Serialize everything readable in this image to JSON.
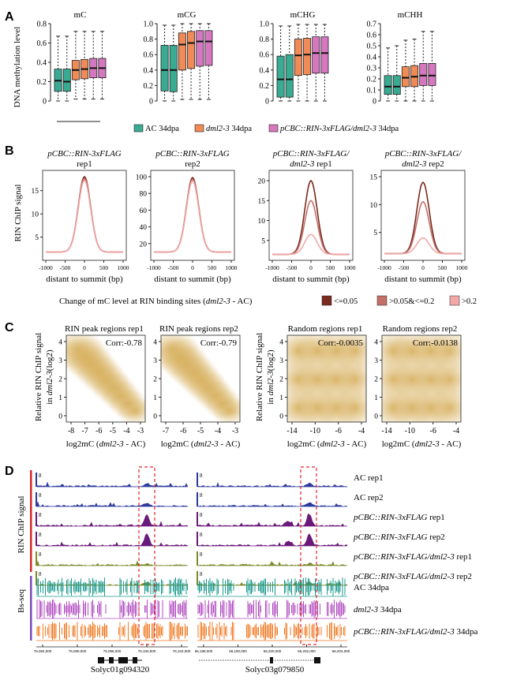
{
  "colors": {
    "ac": "#3aab93",
    "dml": "#f08a57",
    "pcbc": "#d678c0",
    "peak_dark": "#7a2a1e",
    "peak_mid": "#c27068",
    "peak_light": "#f2a8a8",
    "density": "#d7b05e",
    "track_ac": "#2c3a9e",
    "track_pcbc": "#6a1a7a",
    "track_dml": "#7d8a2a",
    "bs_ac": "#1a9a8e",
    "bs_dml": "#b04cc0",
    "bs_pcbc": "#f07a22",
    "bar_red": "#d8262a",
    "bar_purple": "#7a4ab8",
    "highlight": "#e0262a"
  },
  "panels": {
    "A": "A",
    "B": "B",
    "C": "C",
    "D": "D"
  },
  "panelA": {
    "ylabel": "DNA methylation level",
    "legend": [
      {
        "label": "AC 34dpa",
        "color": "#3aab93"
      },
      {
        "label": "dml2-3 34dpa",
        "color": "#f08a57"
      },
      {
        "label": "pCBC::RIN-3xFLAG/dml2-3 34dpa",
        "color": "#d678c0"
      }
    ],
    "charts": [
      {
        "title": "mC",
        "ylim": [
          0,
          0.8
        ],
        "ticks": [
          "0",
          "0.2",
          "0.4",
          "0.6",
          "0.8"
        ],
        "boxes": [
          {
            "group": "AC",
            "q1": 0.1,
            "median": 0.21,
            "q3": 0.33,
            "min": 0.0,
            "max": 0.67
          },
          {
            "group": "AC",
            "q1": 0.1,
            "median": 0.2,
            "q3": 0.33,
            "min": 0.0,
            "max": 0.67
          },
          {
            "group": "dml",
            "q1": 0.22,
            "median": 0.32,
            "q3": 0.42,
            "min": 0.02,
            "max": 0.72
          },
          {
            "group": "dml",
            "q1": 0.23,
            "median": 0.33,
            "q3": 0.43,
            "min": 0.02,
            "max": 0.72
          },
          {
            "group": "pcbc",
            "q1": 0.24,
            "median": 0.34,
            "q3": 0.44,
            "min": 0.02,
            "max": 0.72
          },
          {
            "group": "pcbc",
            "q1": 0.24,
            "median": 0.34,
            "q3": 0.44,
            "min": 0.02,
            "max": 0.72
          }
        ]
      },
      {
        "title": "mCG",
        "ylim": [
          0,
          1.0
        ],
        "ticks": [
          "0",
          "0.2",
          "0.4",
          "0.6",
          "0.8",
          "1.0"
        ],
        "boxes": [
          {
            "group": "AC",
            "q1": 0.13,
            "median": 0.4,
            "q3": 0.72,
            "min": 0.0,
            "max": 0.98
          },
          {
            "group": "AC",
            "q1": 0.12,
            "median": 0.4,
            "q3": 0.72,
            "min": 0.0,
            "max": 0.98
          },
          {
            "group": "dml",
            "q1": 0.4,
            "median": 0.73,
            "q3": 0.88,
            "min": 0.02,
            "max": 1.0
          },
          {
            "group": "dml",
            "q1": 0.42,
            "median": 0.75,
            "q3": 0.9,
            "min": 0.02,
            "max": 1.0
          },
          {
            "group": "pcbc",
            "q1": 0.45,
            "median": 0.77,
            "q3": 0.91,
            "min": 0.02,
            "max": 1.0
          },
          {
            "group": "pcbc",
            "q1": 0.46,
            "median": 0.77,
            "q3": 0.91,
            "min": 0.02,
            "max": 1.0
          }
        ]
      },
      {
        "title": "mCHG",
        "ylim": [
          0,
          1.0
        ],
        "ticks": [
          "0",
          "0.2",
          "0.4",
          "0.6",
          "0.8",
          "1.0"
        ],
        "boxes": [
          {
            "group": "AC",
            "q1": 0.05,
            "median": 0.28,
            "q3": 0.58,
            "min": 0.0,
            "max": 0.97
          },
          {
            "group": "AC",
            "q1": 0.05,
            "median": 0.28,
            "q3": 0.6,
            "min": 0.0,
            "max": 0.97
          },
          {
            "group": "dml",
            "q1": 0.33,
            "median": 0.59,
            "q3": 0.8,
            "min": 0.0,
            "max": 0.99
          },
          {
            "group": "dml",
            "q1": 0.34,
            "median": 0.6,
            "q3": 0.81,
            "min": 0.0,
            "max": 0.99
          },
          {
            "group": "pcbc",
            "q1": 0.36,
            "median": 0.62,
            "q3": 0.83,
            "min": 0.0,
            "max": 0.99
          },
          {
            "group": "pcbc",
            "q1": 0.36,
            "median": 0.62,
            "q3": 0.83,
            "min": 0.0,
            "max": 0.99
          }
        ]
      },
      {
        "title": "mCHH",
        "ylim": [
          0,
          0.7
        ],
        "ticks": [
          "0",
          "0.1",
          "0.2",
          "0.3",
          "0.4",
          "0.5",
          "0.6",
          "0.7"
        ],
        "boxes": [
          {
            "group": "AC",
            "q1": 0.06,
            "median": 0.13,
            "q3": 0.23,
            "min": 0.0,
            "max": 0.48
          },
          {
            "group": "AC",
            "q1": 0.06,
            "median": 0.13,
            "q3": 0.23,
            "min": 0.0,
            "max": 0.5
          },
          {
            "group": "dml",
            "q1": 0.13,
            "median": 0.21,
            "q3": 0.31,
            "min": 0.0,
            "max": 0.55
          },
          {
            "group": "dml",
            "q1": 0.13,
            "median": 0.22,
            "q3": 0.32,
            "min": 0.0,
            "max": 0.56
          },
          {
            "group": "pcbc",
            "q1": 0.14,
            "median": 0.23,
            "q3": 0.34,
            "min": 0.0,
            "max": 0.63
          },
          {
            "group": "pcbc",
            "q1": 0.14,
            "median": 0.23,
            "q3": 0.34,
            "min": 0.0,
            "max": 0.63
          }
        ]
      }
    ]
  },
  "panelB": {
    "ylabel": "RIN ChIP signal",
    "xlabel": "distant to summit (bp)",
    "xticks": [
      "-1000",
      "-500",
      "0",
      "500",
      "1000"
    ],
    "legend_title_pre": "Change of mC level at RIN binding sites (",
    "legend_title_italic": "dml2-3",
    "legend_title_post": " - AC)",
    "legend": [
      {
        "label": "<=0.05",
        "color": "#7a2a1e"
      },
      {
        "label": ">0.05&<=0.2",
        "color": "#c27068"
      },
      {
        "label": ">0.2",
        "color": "#f2a8a8"
      }
    ],
    "charts": [
      {
        "title1": "pCBC::RIN-3xFLAG",
        "title2": "rep1",
        "ymax": 18,
        "yticks": [
          "5",
          "10",
          "15"
        ],
        "peaks": [
          18,
          17.6,
          17.2
        ],
        "base": 1.8
      },
      {
        "title1": "pCBC::RIN-3xFLAG",
        "title2": "rep2",
        "ymax": 100,
        "yticks": [
          "20",
          "40",
          "60",
          "80",
          "100"
        ],
        "peaks": [
          99,
          97,
          95
        ],
        "base": 10
      },
      {
        "title1": "pCBC::RIN-3xFLAG/",
        "title2": "dml2-3 rep1",
        "ymax": 21,
        "yticks": [
          "5",
          "10",
          "15",
          "20"
        ],
        "peaks": [
          20,
          15,
          6.5
        ],
        "base": 1.5
      },
      {
        "title1": "pCBC::RIN-3xFLAG/",
        "title2": "dml2-3 rep2",
        "ymax": 15,
        "yticks": [
          "5",
          "10",
          "15"
        ],
        "peaks": [
          14,
          10.5,
          4
        ],
        "base": 1.2
      }
    ]
  },
  "panelC": {
    "ylabel1": "Relative RIN ChIP signal",
    "ylabel2": "in dml2-3(log2)",
    "xlabel_pre": "log2mC (",
    "xlabel_italic": "dml2-3",
    "xlabel_post": " - AC)",
    "charts": [
      {
        "title": "RIN peak regions rep1",
        "corr": "Corr:-0.78",
        "xticks": [
          "-8",
          "-7",
          "-6",
          "-5",
          "-4",
          "-3"
        ],
        "yticks": [
          "0",
          "1",
          "2",
          "3",
          "4"
        ],
        "kind": "peak"
      },
      {
        "title": "RIN peak regions rep2",
        "corr": "Corr:-0.79",
        "xticks": [
          "-7",
          "-6",
          "-5",
          "-4",
          "-3"
        ],
        "yticks": [
          "0",
          "1",
          "2",
          "3",
          "4"
        ],
        "kind": "peak"
      },
      {
        "title": "Random regions rep1",
        "corr": "Corr:-0.0035",
        "xticks": [
          "-14",
          "-10",
          "-6",
          "-4"
        ],
        "yticks": [
          "0",
          "1",
          "2",
          "3",
          "4"
        ],
        "kind": "random"
      },
      {
        "title": "Random regions rep2",
        "corr": "Corr:-0.0138",
        "xticks": [
          "-14",
          "-10",
          "-6",
          "-4"
        ],
        "yticks": [
          "0",
          "1",
          "2",
          "3",
          "4"
        ],
        "kind": "random"
      }
    ]
  },
  "panelD": {
    "chip_label": "RIN ChIP signal",
    "bs_label": "Bs-seq",
    "scale_value": "8",
    "tracks": [
      {
        "label": "AC rep1",
        "italic": "",
        "suffix": "",
        "type": "chip",
        "color": "#2c3a9e",
        "peak": 0.25
      },
      {
        "label": "AC rep2",
        "italic": "",
        "suffix": "",
        "type": "chip",
        "color": "#2c3a9e",
        "peak": 0.25
      },
      {
        "label": "",
        "italic": "pCBC::RIN-3xFLAG",
        "suffix": " rep1",
        "type": "chip",
        "color": "#6a1a7a",
        "peak": 0.9
      },
      {
        "label": "",
        "italic": "pCBC::RIN-3xFLAG",
        "suffix": " rep2",
        "type": "chip",
        "color": "#6a1a7a",
        "peak": 0.95
      },
      {
        "label": "",
        "italic": "pCBC::RIN-3xFLAG/dml2-3",
        "suffix": " rep1",
        "type": "chip",
        "color": "#7d8a2a",
        "peak": 0.15
      },
      {
        "label": "",
        "italic": "pCBC::RIN-3xFLAG/dml2-3",
        "suffix": " rep2",
        "type": "chip",
        "color": "#7d8a2a",
        "peak": 0.2
      },
      {
        "label": "AC 34dpa",
        "italic": "",
        "suffix": "",
        "type": "bs",
        "color": "#1a9a8e",
        "peak": 1
      },
      {
        "label": "",
        "italic": "dml2-3",
        "suffix": " 34dpa",
        "type": "bs",
        "color": "#b04cc0",
        "peak": 1
      },
      {
        "label": "",
        "italic": "pCBC::RIN-3xFLAG/dml2-3",
        "suffix": " 34dpa",
        "type": "bs",
        "color": "#f07a22",
        "peak": 1
      }
    ],
    "left_coords": [
      "76,084,000",
      "76,090,000",
      "76,096,000",
      "76,100,000",
      "76,102,000"
    ],
    "right_coords": [
      "66,188,000",
      "66,190,000",
      "66,200,000",
      "66,202,000",
      "66,204,000"
    ],
    "gene_left": "Solyc01g094320",
    "gene_right": "Solyc03g079850"
  }
}
